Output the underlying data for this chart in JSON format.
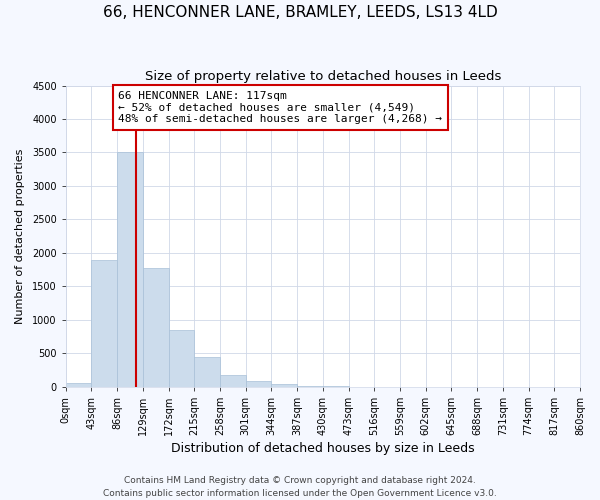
{
  "title": "66, HENCONNER LANE, BRAMLEY, LEEDS, LS13 4LD",
  "subtitle": "Size of property relative to detached houses in Leeds",
  "xlabel": "Distribution of detached houses by size in Leeds",
  "ylabel": "Number of detached properties",
  "bin_edges": [
    0,
    43,
    86,
    129,
    172,
    215,
    258,
    301,
    344,
    387,
    430,
    473,
    516,
    559,
    602,
    645,
    688,
    731,
    774,
    817,
    860
  ],
  "bin_labels": [
    "0sqm",
    "43sqm",
    "86sqm",
    "129sqm",
    "172sqm",
    "215sqm",
    "258sqm",
    "301sqm",
    "344sqm",
    "387sqm",
    "430sqm",
    "473sqm",
    "516sqm",
    "559sqm",
    "602sqm",
    "645sqm",
    "688sqm",
    "731sqm",
    "774sqm",
    "817sqm",
    "860sqm"
  ],
  "counts": [
    50,
    1900,
    3500,
    1780,
    850,
    450,
    175,
    85,
    45,
    10,
    5,
    0,
    0,
    0,
    0,
    0,
    0,
    0,
    0,
    0
  ],
  "bar_color": "#ccdcec",
  "bar_edgecolor": "#a8c0d8",
  "property_line_x": 117,
  "property_line_color": "#cc0000",
  "annotation_box_text": "66 HENCONNER LANE: 117sqm\n← 52% of detached houses are smaller (4,549)\n48% of semi-detached houses are larger (4,268) →",
  "annotation_box_edgecolor": "#cc0000",
  "annotation_box_facecolor": "#ffffff",
  "ylim": [
    0,
    4500
  ],
  "yticks": [
    0,
    500,
    1000,
    1500,
    2000,
    2500,
    3000,
    3500,
    4000,
    4500
  ],
  "footer1": "Contains HM Land Registry data © Crown copyright and database right 2024.",
  "footer2": "Contains public sector information licensed under the Open Government Licence v3.0.",
  "fig_background_color": "#f5f8ff",
  "plot_background_color": "#ffffff",
  "grid_color": "#d0d8e8",
  "title_fontsize": 11,
  "subtitle_fontsize": 9.5,
  "xlabel_fontsize": 9,
  "ylabel_fontsize": 8,
  "tick_fontsize": 7,
  "annotation_fontsize": 8,
  "footer_fontsize": 6.5
}
